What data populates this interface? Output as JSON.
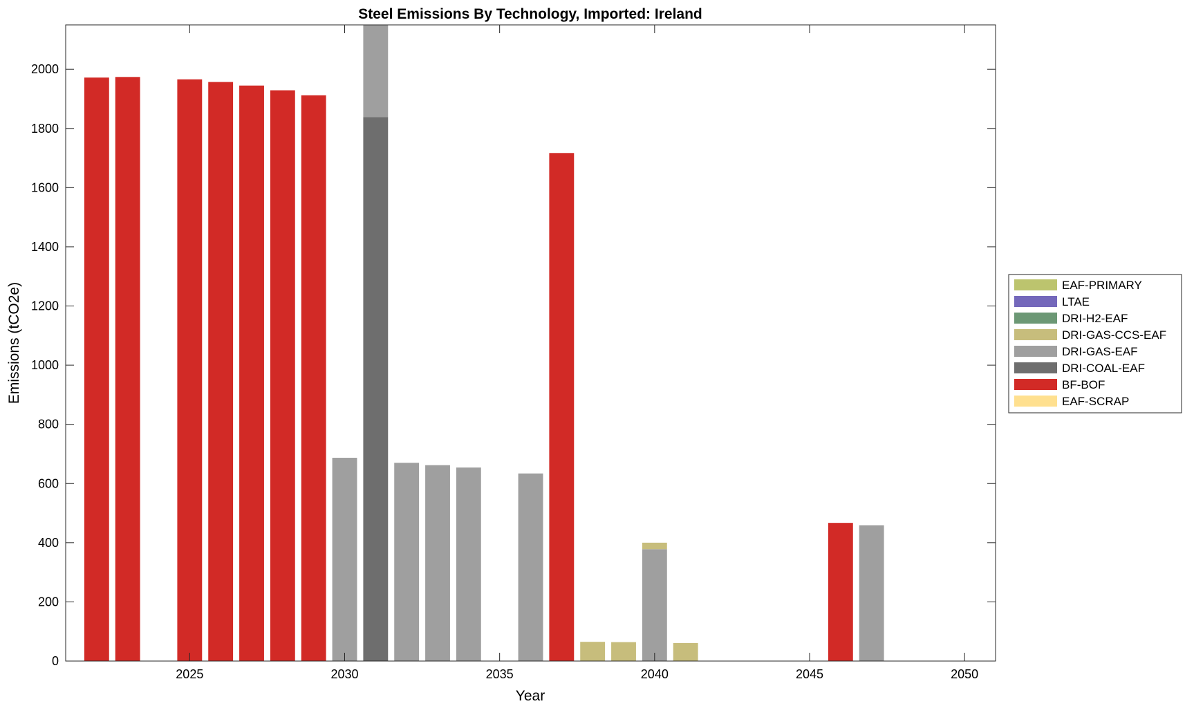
{
  "chart_data": {
    "type": "bar",
    "stacked": true,
    "title": "Steel Emissions By Technology, Imported: Ireland",
    "xlabel": "Year",
    "ylabel": "Emissions (tCO2e)",
    "xlim": [
      2021,
      2051
    ],
    "ylim": [
      0,
      2150
    ],
    "xticks": [
      2025,
      2030,
      2035,
      2040,
      2045,
      2050
    ],
    "yticks": [
      0,
      200,
      400,
      600,
      800,
      1000,
      1200,
      1400,
      1600,
      1800,
      2000
    ],
    "legend_position": "outside-right",
    "x": [
      2022,
      2023,
      2024,
      2025,
      2026,
      2027,
      2028,
      2029,
      2030,
      2031,
      2032,
      2033,
      2034,
      2035,
      2036,
      2037,
      2038,
      2039,
      2040,
      2041,
      2042,
      2043,
      2044,
      2045,
      2046,
      2047,
      2048,
      2049,
      2050
    ],
    "series": [
      {
        "name": "EAF-SCRAP",
        "color": "#ffe08f",
        "values": [
          0,
          0,
          0,
          0,
          0,
          0,
          0,
          0,
          0,
          0,
          0,
          0,
          0,
          0,
          0,
          0,
          0,
          0,
          0,
          0,
          0,
          0,
          0,
          0,
          0,
          0,
          0,
          0,
          0
        ]
      },
      {
        "name": "BF-BOF",
        "color": "#d22a26",
        "values": [
          1972,
          1974,
          0,
          1966,
          1957,
          1945,
          1929,
          1912,
          0,
          0,
          0,
          0,
          0,
          0,
          0,
          1717,
          0,
          0,
          0,
          0,
          0,
          0,
          0,
          0,
          467,
          0,
          0,
          0,
          0
        ]
      },
      {
        "name": "DRI-COAL-EAF",
        "color": "#6e6e6e",
        "values": [
          0,
          0,
          0,
          0,
          0,
          0,
          0,
          0,
          0,
          1838,
          0,
          0,
          0,
          0,
          0,
          0,
          0,
          0,
          0,
          0,
          0,
          0,
          0,
          0,
          0,
          0,
          0,
          0,
          0
        ]
      },
      {
        "name": "DRI-GAS-EAF",
        "color": "#9f9f9f",
        "values": [
          0,
          0,
          0,
          0,
          0,
          0,
          0,
          0,
          687,
          320,
          670,
          662,
          654,
          0,
          634,
          0,
          0,
          0,
          378,
          0,
          0,
          0,
          0,
          0,
          0,
          459,
          0,
          0,
          0
        ]
      },
      {
        "name": "DRI-GAS-CCS-EAF",
        "color": "#c7bd7c",
        "values": [
          0,
          0,
          0,
          0,
          0,
          0,
          0,
          0,
          0,
          0,
          0,
          0,
          0,
          0,
          0,
          0,
          65,
          64,
          22,
          61,
          0,
          0,
          0,
          0,
          0,
          0,
          0,
          0,
          0
        ]
      },
      {
        "name": "DRI-H2-EAF",
        "color": "#6c9875",
        "values": [
          0,
          0,
          0,
          0,
          0,
          0,
          0,
          0,
          0,
          0,
          0,
          0,
          0,
          0,
          0,
          0,
          0,
          0,
          0,
          0,
          0,
          0,
          0,
          0,
          0,
          0,
          0,
          0,
          0
        ]
      },
      {
        "name": "LTAE",
        "color": "#7468bb",
        "values": [
          0,
          0,
          0,
          0,
          0,
          0,
          0,
          0,
          0,
          0,
          0,
          0,
          0,
          0,
          0,
          0,
          0,
          0,
          0,
          0,
          0,
          0,
          0,
          0,
          0,
          0,
          0,
          0,
          0
        ]
      },
      {
        "name": "EAF-PRIMARY",
        "color": "#bcc46e",
        "values": [
          0,
          0,
          0,
          0,
          0,
          0,
          0,
          0,
          0,
          0,
          0,
          0,
          0,
          0,
          0,
          0,
          0,
          0,
          0,
          0,
          0,
          0,
          0,
          0,
          0,
          0,
          0,
          0,
          0
        ]
      }
    ],
    "legend_order": [
      "EAF-PRIMARY",
      "LTAE",
      "DRI-H2-EAF",
      "DRI-GAS-CCS-EAF",
      "DRI-GAS-EAF",
      "DRI-COAL-EAF",
      "BF-BOF",
      "EAF-SCRAP"
    ]
  }
}
